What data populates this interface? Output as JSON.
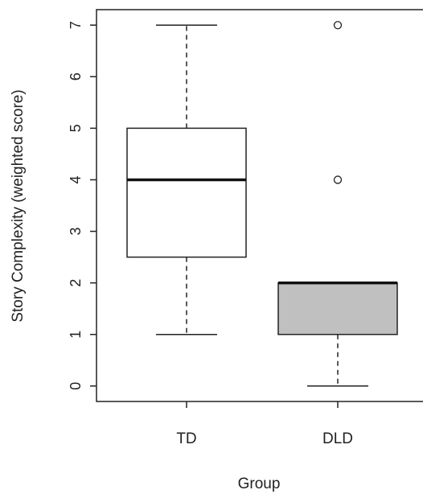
{
  "chart_data": {
    "type": "boxplot",
    "title": "",
    "xlabel": "Group",
    "ylabel": "Story Complexity (weighted score)",
    "categories": [
      "TD",
      "DLD"
    ],
    "ylim": [
      -0.3,
      7.3
    ],
    "y_ticks": [
      0,
      1,
      2,
      3,
      4,
      5,
      6,
      7
    ],
    "grid": false,
    "legend": "none",
    "boxes": [
      {
        "group": "TD",
        "min": 1,
        "q1": 2.5,
        "median": 4,
        "q3": 5,
        "max": 7,
        "outliers": [],
        "fill": "#ffffff"
      },
      {
        "group": "DLD",
        "min": 0,
        "q1": 1,
        "median": 2,
        "q3": 2,
        "max": 2,
        "outliers": [
          4,
          7
        ],
        "fill": "#c0c0c0"
      }
    ]
  }
}
